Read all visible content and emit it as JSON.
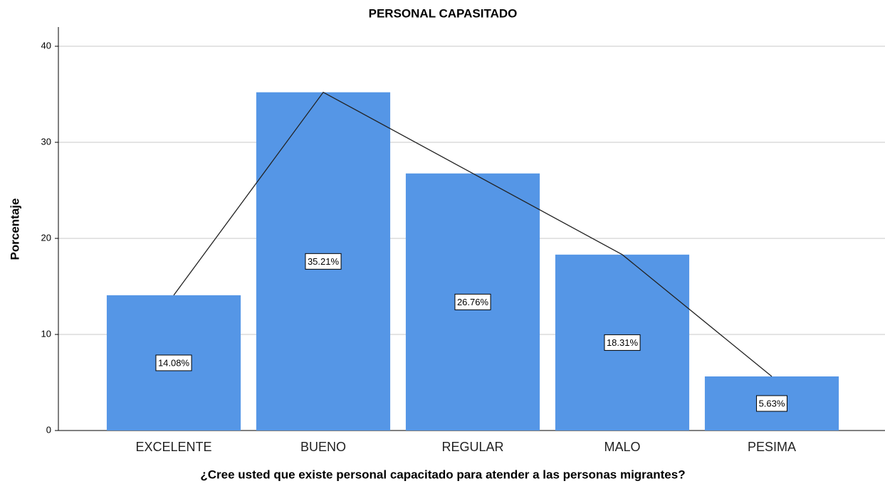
{
  "chart_data": {
    "type": "bar",
    "title": "PERSONAL CAPASITADO",
    "x_label": "¿Cree usted que existe personal capacitado para atender a las personas migrantes?",
    "y_label": "Porcentaje",
    "categories": [
      "EXCELENTE",
      "BUENO",
      "REGULAR",
      "MALO",
      "PESIMA"
    ],
    "values": [
      14.08,
      35.21,
      26.76,
      18.31,
      5.63
    ],
    "value_labels": [
      "14.08%",
      "35.21%",
      "26.76%",
      "18.31%",
      "5.63%"
    ],
    "color": "#5596e6",
    "line_color": "#222222",
    "ylim": [
      0,
      42
    ],
    "yticks": [
      0,
      10,
      20,
      30,
      40
    ],
    "grid": true
  }
}
